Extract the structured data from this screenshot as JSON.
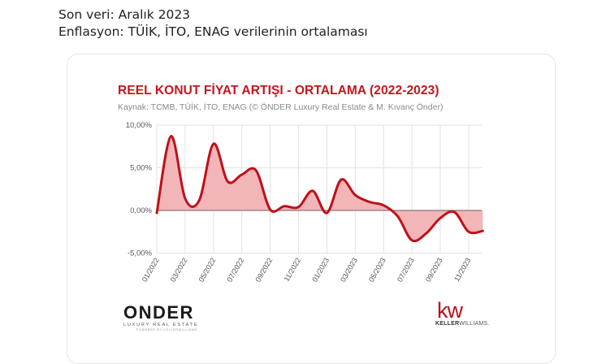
{
  "tweet": {
    "line1": "Son veri: Aralık 2023",
    "line2": "Enflasyon: TÜİK, İTO, ENAG verilerinin ortalaması"
  },
  "chart_card": {
    "title": "REEL KONUT FİYAT ARTIŞI - ORTALAMA (2022-2023)",
    "subtitle": "Kaynak: TCMB, TÜİK, İTO, ENAG (© ÖNDER Luxury Real Estate & M. Kıvanç Önder)"
  },
  "logos": {
    "onder": {
      "name": "ONDER",
      "tagline": "LUXURY REAL ESTATE",
      "powered": "POWERED BY KELLERWILLIAMS"
    },
    "kw": {
      "mark": "kw",
      "name_bold": "KELLER",
      "name_light": "WILLIAMS."
    }
  },
  "colors": {
    "title": "#c4161c",
    "line": "#c0101a",
    "fill": "#f2b6b9",
    "grid": "#e2e2e2",
    "zero_line": "#7a5a5a"
  },
  "chart_data": {
    "type": "area",
    "title": "REEL KONUT FİYAT ARTIŞI - ORTALAMA (2022-2023)",
    "subtitle": "Kaynak: TCMB, TÜİK, İTO, ENAG (© ÖNDER Luxury Real Estate & M. Kıvanç Önder)",
    "xlabel": "",
    "ylabel": "",
    "ylim": [
      -5,
      10
    ],
    "yticks": [
      "10,00%",
      "5,00%",
      "0,00%",
      "-5,00%"
    ],
    "ytick_values": [
      10,
      5,
      0,
      -5
    ],
    "xtick_labels": [
      "01/2022",
      "03/2022",
      "05/2022",
      "07/2022",
      "09/2022",
      "11/2022",
      "01/2023",
      "03/2023",
      "05/2023",
      "07/2023",
      "09/2023",
      "11/2023"
    ],
    "x": [
      "01/2022",
      "02/2022",
      "03/2022",
      "04/2022",
      "05/2022",
      "06/2022",
      "07/2022",
      "08/2022",
      "09/2022",
      "10/2022",
      "11/2022",
      "12/2022",
      "01/2023",
      "02/2023",
      "03/2023",
      "04/2023",
      "05/2023",
      "06/2023",
      "07/2023",
      "08/2023",
      "09/2023",
      "10/2023",
      "11/2023",
      "12/2023"
    ],
    "series": [
      {
        "name": "Reel konut fiyat artışı (ortalama)",
        "values": [
          -0.3,
          8.7,
          1.4,
          1.2,
          7.8,
          3.4,
          4.2,
          4.7,
          0.1,
          0.5,
          0.4,
          2.3,
          -0.3,
          3.6,
          1.8,
          1.0,
          0.6,
          -0.7,
          -3.5,
          -2.7,
          -0.9,
          -0.2,
          -2.5,
          -2.4
        ]
      }
    ],
    "grid": true,
    "legend": "none"
  }
}
